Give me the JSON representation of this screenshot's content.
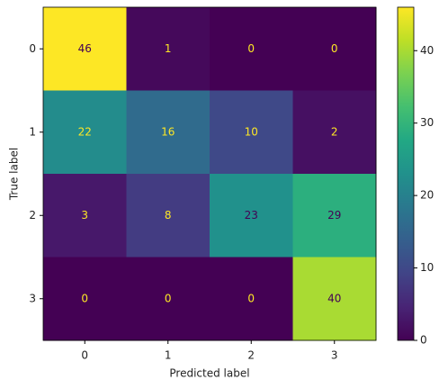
{
  "chart_data": {
    "type": "heatmap",
    "xlabel": "Predicted label",
    "ylabel": "True label",
    "x_categories": [
      "0",
      "1",
      "2",
      "3"
    ],
    "y_categories": [
      "0",
      "1",
      "2",
      "3"
    ],
    "values": [
      [
        46,
        1,
        0,
        0
      ],
      [
        22,
        16,
        10,
        2
      ],
      [
        3,
        8,
        23,
        29
      ],
      [
        0,
        0,
        0,
        40
      ]
    ],
    "colormap": "viridis",
    "zlim": [
      0,
      46
    ],
    "zticks": [
      0,
      10,
      20,
      30,
      40
    ]
  }
}
